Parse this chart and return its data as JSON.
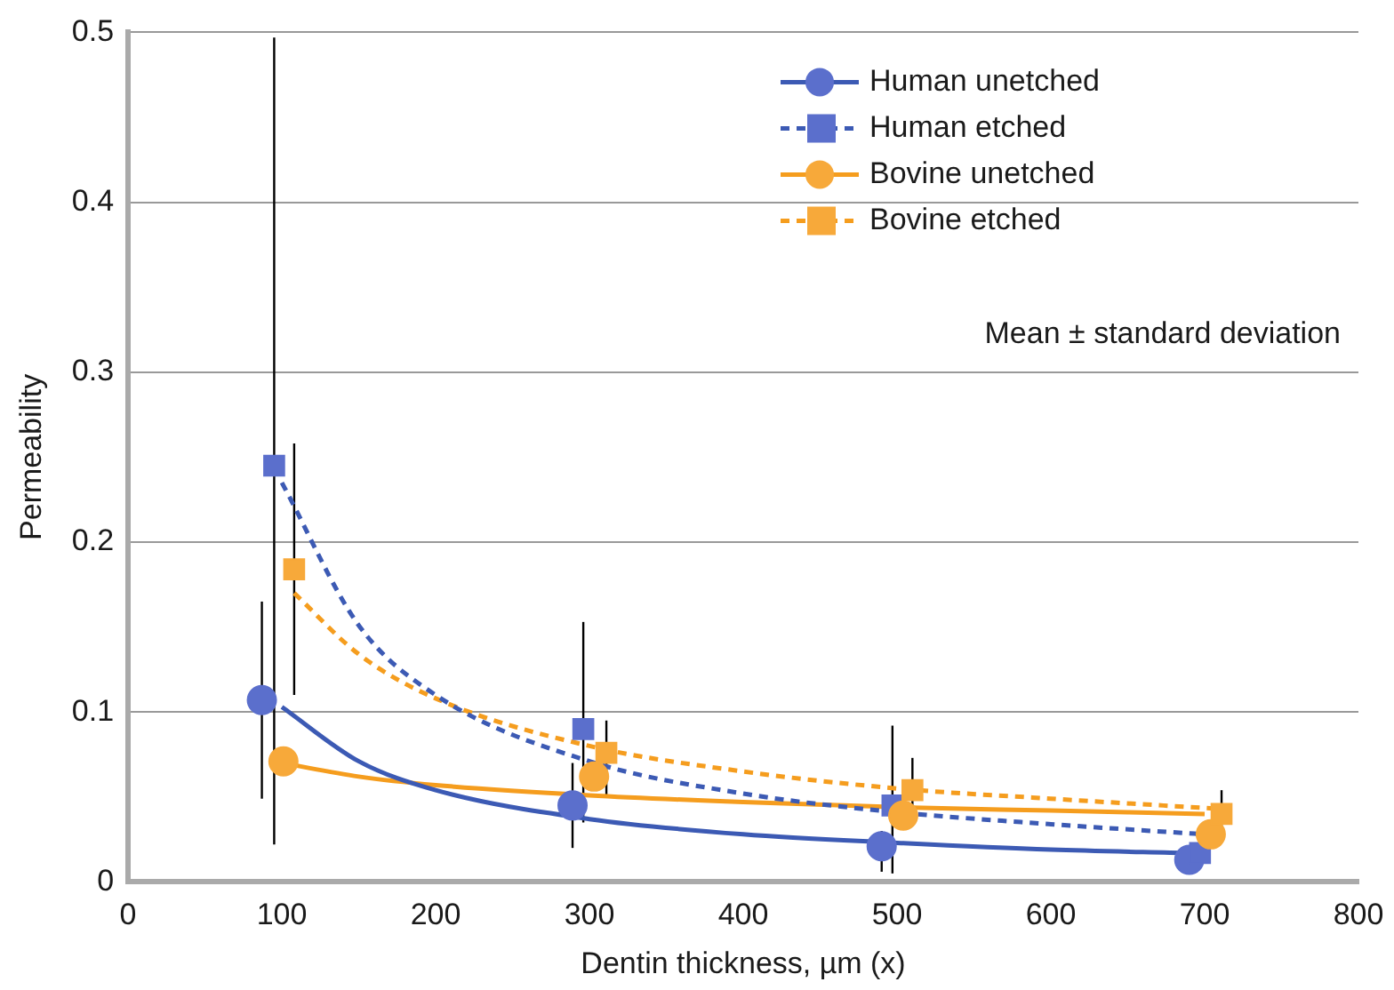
{
  "chart_data": {
    "type": "scatter",
    "xlabel": "Dentin thickness, µm (x)",
    "ylabel": "Permeability",
    "xlim": [
      0,
      800
    ],
    "xticks": [
      0,
      100,
      200,
      300,
      400,
      500,
      600,
      700,
      800
    ],
    "ylim": [
      0,
      0.5
    ],
    "yticks": [
      0,
      0.1,
      0.2,
      0.3,
      0.4,
      0.5
    ],
    "grid": "y",
    "legend": "top right",
    "annotations": [
      {
        "text": "Mean ± standard deviation"
      }
    ],
    "series": [
      {
        "name": "Human unetched",
        "marker": "circle",
        "color": "#5b6fcc",
        "x": [
          87,
          289,
          490,
          690
        ],
        "values": [
          0.107,
          0.045,
          0.021,
          0.013
        ],
        "errors": [
          [
            0.049,
            0.165
          ],
          [
            0.02,
            0.07
          ],
          [
            0.006,
            0.03
          ],
          null
        ]
      },
      {
        "type": "line",
        "color": "#3c5ab4",
        "line_style": "solid",
        "x": [
          100,
          150,
          200,
          300,
          400,
          500,
          600,
          690
        ],
        "values": [
          0.103,
          0.071,
          0.054,
          0.037,
          0.028,
          0.023,
          0.019,
          0.017
        ]
      },
      {
        "name": "Human etched",
        "marker": "square",
        "color": "#5b6fcc",
        "x": [
          95,
          296,
          497,
          697
        ],
        "values": [
          0.245,
          0.09,
          0.045,
          0.017
        ],
        "errors": [
          [
            0.022,
            0.497
          ],
          [
            0.035,
            0.153
          ],
          [
            0.005,
            0.092
          ],
          null
        ]
      },
      {
        "type": "line",
        "color": "#3c5ab4",
        "line_style": "dashed",
        "x": [
          100,
          150,
          200,
          300,
          400,
          500,
          600,
          700
        ],
        "values": [
          0.235,
          0.151,
          0.11,
          0.071,
          0.052,
          0.041,
          0.034,
          0.028
        ]
      },
      {
        "name": "Bovine unetched",
        "marker": "circle",
        "color": "#f7a93a",
        "x": [
          101,
          303,
          504,
          704
        ],
        "values": [
          0.071,
          0.062,
          0.039,
          0.028
        ],
        "errors": [
          null,
          null,
          null,
          null
        ]
      },
      {
        "type": "line",
        "color": "#f59d1e",
        "line_style": "solid",
        "x": [
          100,
          150,
          200,
          300,
          400,
          500,
          600,
          700
        ],
        "values": [
          0.07,
          0.062,
          0.057,
          0.051,
          0.047,
          0.044,
          0.042,
          0.04
        ]
      },
      {
        "name": "Bovine etched",
        "marker": "square",
        "color": "#f7a93a",
        "x": [
          108,
          311,
          510,
          711
        ],
        "values": [
          0.184,
          0.076,
          0.054,
          0.04
        ],
        "errors": [
          [
            0.11,
            0.258
          ],
          [
            0.05,
            0.095
          ],
          [
            0.035,
            0.073
          ],
          [
            0.025,
            0.054
          ]
        ]
      },
      {
        "type": "line",
        "color": "#f59d1e",
        "line_style": "dashed",
        "x": [
          108,
          150,
          200,
          300,
          400,
          500,
          600,
          710
        ],
        "values": [
          0.17,
          0.134,
          0.108,
          0.08,
          0.065,
          0.055,
          0.049,
          0.043
        ]
      }
    ]
  }
}
